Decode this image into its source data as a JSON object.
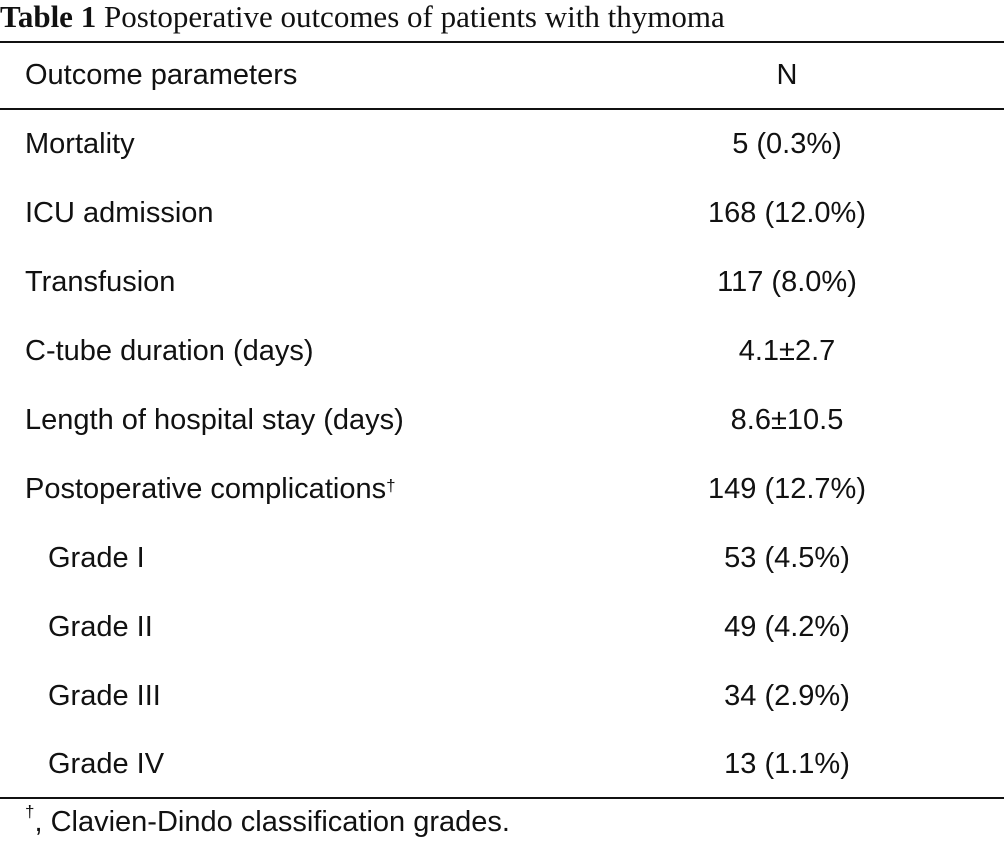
{
  "caption": {
    "label": "Table 1",
    "title": "Postoperative outcomes of patients with thymoma"
  },
  "columns": {
    "param": "Outcome parameters",
    "n": "N"
  },
  "rows": [
    {
      "param": "Mortality",
      "value": "5 (0.3%)"
    },
    {
      "param": "ICU admission",
      "value": "168 (12.0%)"
    },
    {
      "param": "Transfusion",
      "value": "117 (8.0%)"
    },
    {
      "param": "C-tube duration (days)",
      "value": "4.1±2.7"
    },
    {
      "param": "Length of hospital stay (days)",
      "value": "8.6±10.5"
    },
    {
      "param": "Postoperative complications",
      "marker": "†",
      "value": "149 (12.7%)"
    },
    {
      "param": "Grade I",
      "value": "53 (4.5%)"
    },
    {
      "param": "Grade II",
      "value": "49 (4.2%)"
    },
    {
      "param": "Grade III",
      "value": "34 (2.9%)"
    },
    {
      "param": "Grade IV",
      "value": "13 (1.1%)"
    }
  ],
  "footnote": {
    "marker": "†",
    "text": ", Clavien-Dindo classification grades."
  }
}
